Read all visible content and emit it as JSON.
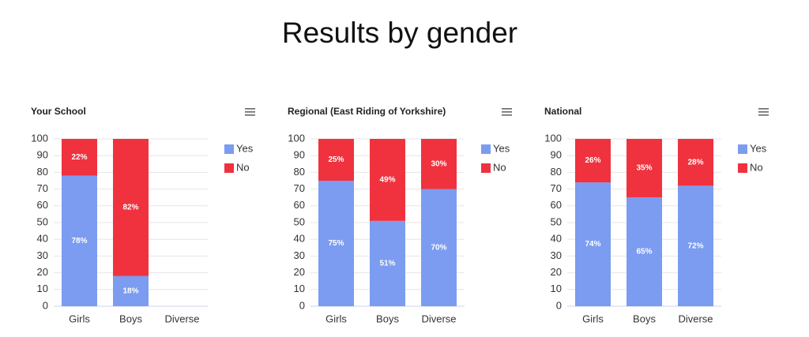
{
  "title": "Results by gender",
  "chart_data": [
    {
      "type": "bar",
      "stacked": true,
      "title": "Your School",
      "categories": [
        "Girls",
        "Boys",
        "Diverse"
      ],
      "series": [
        {
          "name": "Yes",
          "color": "#7b9cf0",
          "values": [
            78,
            18,
            null
          ],
          "value_labels": [
            "78%",
            "18%",
            null
          ]
        },
        {
          "name": "No",
          "color": "#f0323f",
          "values": [
            22,
            82,
            null
          ],
          "value_labels": [
            "22%",
            "82%",
            null
          ]
        }
      ],
      "ylim": [
        0,
        100
      ],
      "yticks": [
        0,
        10,
        20,
        30,
        40,
        50,
        60,
        70,
        80,
        90,
        100
      ],
      "grid": true
    },
    {
      "type": "bar",
      "stacked": true,
      "title": "Regional (East Riding of Yorkshire)",
      "categories": [
        "Girls",
        "Boys",
        "Diverse"
      ],
      "series": [
        {
          "name": "Yes",
          "color": "#7b9cf0",
          "values": [
            75,
            51,
            70
          ],
          "value_labels": [
            "75%",
            "51%",
            "70%"
          ]
        },
        {
          "name": "No",
          "color": "#f0323f",
          "values": [
            25,
            49,
            30
          ],
          "value_labels": [
            "25%",
            "49%",
            "30%"
          ]
        }
      ],
      "ylim": [
        0,
        100
      ],
      "yticks": [
        0,
        10,
        20,
        30,
        40,
        50,
        60,
        70,
        80,
        90,
        100
      ],
      "grid": true
    },
    {
      "type": "bar",
      "stacked": true,
      "title": "National",
      "categories": [
        "Girls",
        "Boys",
        "Diverse"
      ],
      "series": [
        {
          "name": "Yes",
          "color": "#7b9cf0",
          "values": [
            74,
            65,
            72
          ],
          "value_labels": [
            "74%",
            "65%",
            "72%"
          ]
        },
        {
          "name": "No",
          "color": "#f0323f",
          "values": [
            26,
            35,
            28
          ],
          "value_labels": [
            "26%",
            "35%",
            "28%"
          ]
        }
      ],
      "ylim": [
        0,
        100
      ],
      "yticks": [
        0,
        10,
        20,
        30,
        40,
        50,
        60,
        70,
        80,
        90,
        100
      ],
      "grid": true
    }
  ]
}
